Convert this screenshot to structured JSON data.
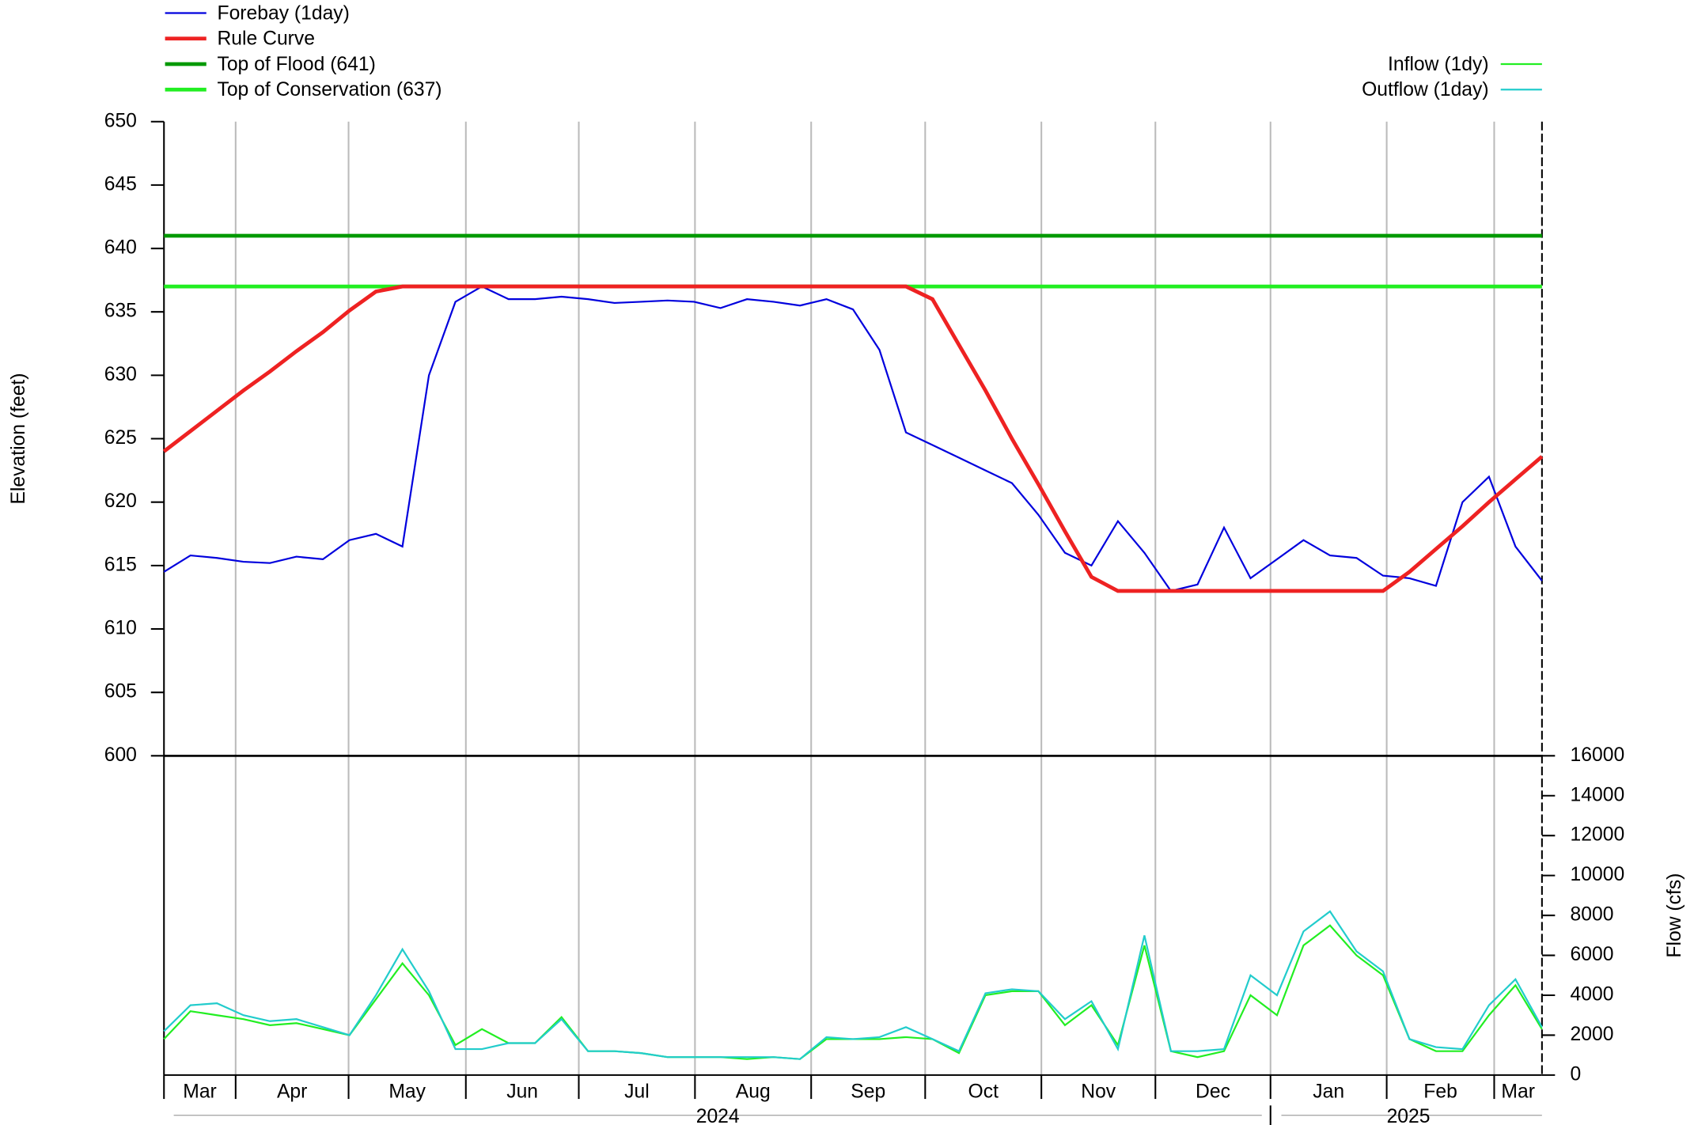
{
  "chart_data": [
    {
      "type": "line",
      "y_label": "Elevation (feet)",
      "ylim": [
        600,
        650
      ],
      "yticks": [
        600,
        605,
        610,
        615,
        620,
        625,
        630,
        635,
        640,
        645,
        650
      ],
      "series": [
        {
          "name": "Forebay (1day)",
          "color": "#0000dd",
          "values": [
            614.5,
            615.8,
            615.6,
            615.3,
            615.2,
            615.7,
            615.5,
            617.0,
            617.5,
            616.5,
            630,
            635.8,
            637,
            636,
            636,
            636.2,
            636,
            635.7,
            635.8,
            635.9,
            635.8,
            635.3,
            636,
            635.8,
            635.5,
            636,
            635.2,
            632,
            625.5,
            624.5,
            623.5,
            622.5,
            621.5,
            619,
            616,
            615,
            618.5,
            616,
            613,
            613.5,
            618,
            614,
            615.5,
            617,
            615.8,
            615.6,
            614.2,
            614,
            613.4,
            620,
            622,
            616.5,
            613.8
          ]
        },
        {
          "name": "Rule Curve",
          "color": "#ee2222",
          "values": [
            624,
            625.6,
            627.2,
            628.8,
            630.3,
            631.9,
            633.4,
            635.1,
            636.6,
            637,
            637,
            637,
            637,
            637,
            637,
            637,
            637,
            637,
            637,
            637,
            637,
            637,
            637,
            637,
            637,
            637,
            637,
            637,
            637,
            636.0,
            632.4,
            628.8,
            625.0,
            621.4,
            617.7,
            614.1,
            613,
            613,
            613,
            613,
            613,
            613,
            613,
            613,
            613,
            613,
            613,
            614.5,
            616.3,
            618.1,
            620.0,
            621.8,
            623.6
          ]
        }
      ],
      "hlines": [
        {
          "name": "Top of Flood (641)",
          "value": 641,
          "color": "#009900"
        },
        {
          "name": "Top of Conservation (637)",
          "value": 637,
          "color": "#22ee22"
        }
      ]
    },
    {
      "type": "line",
      "y_label": "Flow (cfs)",
      "ylim": [
        0,
        16000
      ],
      "yticks": [
        0,
        2000,
        4000,
        6000,
        8000,
        10000,
        12000,
        14000,
        16000
      ],
      "series": [
        {
          "name": "Inflow (1dy)",
          "color": "#22ee22",
          "values": [
            1800,
            3200,
            3000,
            2800,
            2500,
            2600,
            2300,
            2000,
            3800,
            5600,
            4000,
            1500,
            2300,
            1600,
            1600,
            2900,
            1200,
            1200,
            1100,
            900,
            900,
            900,
            800,
            900,
            800,
            1800,
            1800,
            1800,
            1900,
            1800,
            1100,
            4000,
            4200,
            4200,
            2500,
            3500,
            1500,
            6500,
            1200,
            900,
            1200,
            4000,
            3000,
            6500,
            7500,
            6000,
            5000,
            1800,
            1200,
            1200,
            3000,
            4500,
            2300
          ]
        },
        {
          "name": "Outflow (1day)",
          "color": "#22cccc",
          "values": [
            2200,
            3500,
            3600,
            3000,
            2700,
            2800,
            2400,
            2000,
            4000,
            6300,
            4200,
            1300,
            1300,
            1600,
            1600,
            2800,
            1200,
            1200,
            1100,
            900,
            900,
            900,
            900,
            900,
            800,
            1900,
            1800,
            1900,
            2400,
            1800,
            1200,
            4100,
            4300,
            4200,
            2800,
            3700,
            1300,
            7000,
            1200,
            1200,
            1300,
            5000,
            4000,
            7200,
            8200,
            6200,
            5200,
            1800,
            1400,
            1300,
            3500,
            4800,
            2400
          ]
        }
      ]
    },
    {
      "type": "axis",
      "categories": [
        "Mar",
        "Apr",
        "May",
        "Jun",
        "Jul",
        "Aug",
        "Sep",
        "Oct",
        "Nov",
        "Dec",
        "Jan",
        "Feb",
        "Mar"
      ],
      "years": [
        "2024",
        "2025"
      ]
    }
  ]
}
